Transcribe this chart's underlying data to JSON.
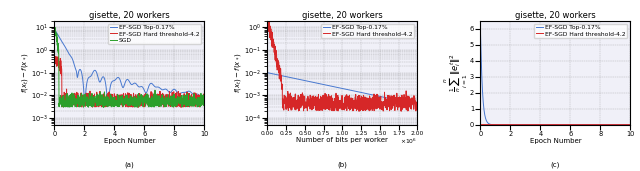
{
  "title": "gisette, 20 workers",
  "subplot_labels": [
    "(a)",
    "(b)",
    "(c)"
  ],
  "legend_entries": {
    "ab": [
      "EF-SGD Top-0.17%",
      "EF-SGD Hard threshold-4.2",
      "SGD"
    ],
    "c": [
      "EF-SGD Top-0.17%",
      "EF-SGD Hard threshold-4.2"
    ]
  },
  "colors": {
    "blue": "#4878cf",
    "red": "#d62728",
    "green": "#2ca02c"
  },
  "ax_a": {
    "xlabel": "Epoch Number",
    "xlim": [
      0,
      10
    ],
    "ylim_low": 0.0005,
    "ylim_high": 20.0
  },
  "ax_b": {
    "xlabel": "Number of bits per worker",
    "xlim": [
      0,
      2000000.0
    ],
    "ylim_low": 5e-05,
    "ylim_high": 2.0
  },
  "ax_c": {
    "xlabel": "Epoch Number",
    "xlim": [
      0,
      10
    ],
    "ylim": [
      0,
      6.5
    ]
  },
  "seed": 1234
}
